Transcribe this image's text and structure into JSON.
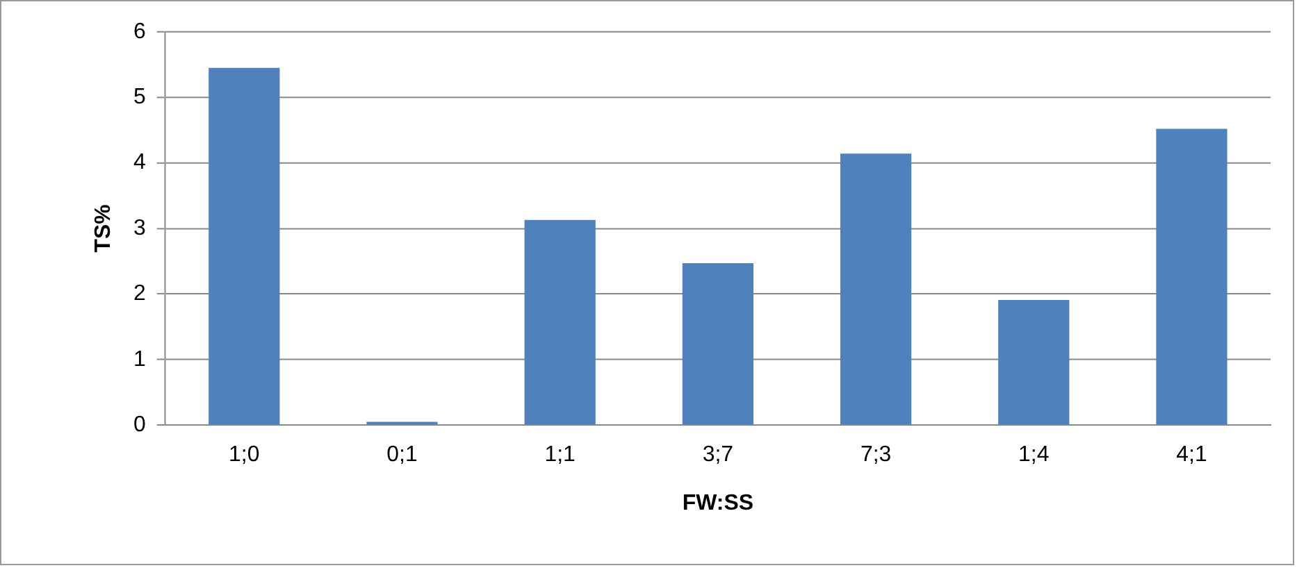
{
  "chart_data": {
    "type": "bar",
    "xlabel": "FW:SS",
    "ylabel": "TS%",
    "categories": [
      "1;0",
      "0;1",
      "1;1",
      "3;7",
      "7;3",
      "1;4",
      "4;1"
    ],
    "values": [
      5.45,
      0.05,
      3.13,
      2.47,
      4.14,
      1.91,
      4.52
    ],
    "color": "#4f81bd",
    "ylim": [
      0,
      6
    ],
    "yticks": [
      0,
      1,
      2,
      3,
      4,
      5,
      6
    ],
    "grid": "y",
    "legend": false
  }
}
